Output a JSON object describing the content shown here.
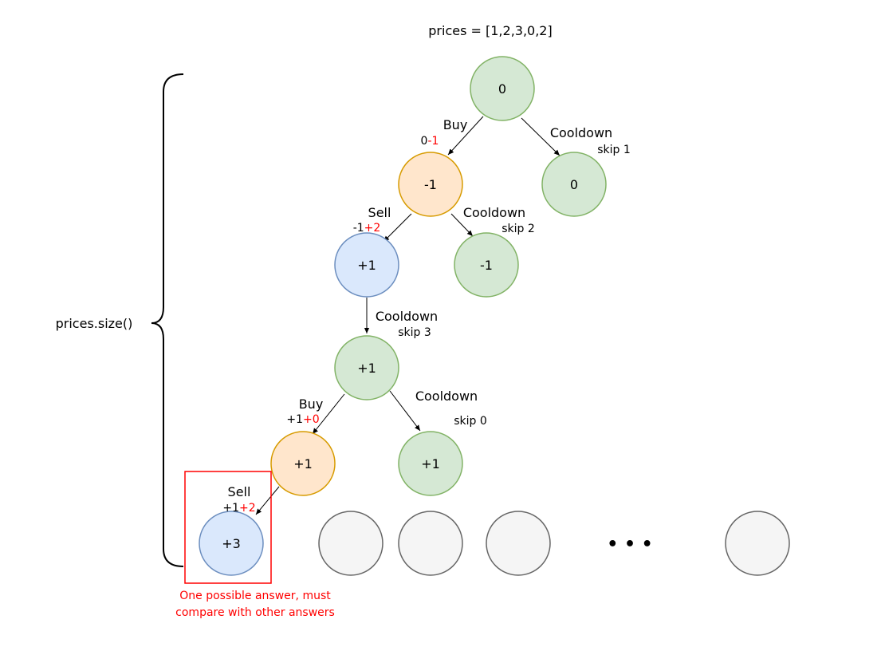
{
  "title": "prices = [1,2,3,0,2]",
  "side_label": "prices.size()",
  "colors": {
    "green_fill": "#d5e8d4",
    "green_stroke": "#82b366",
    "orange_fill": "#ffe6cc",
    "orange_stroke": "#d79b00",
    "blue_fill": "#dae8fc",
    "blue_stroke": "#6c8ebf",
    "gray_fill": "#f5f5f5",
    "gray_stroke": "#666666",
    "accent_red": "#ff0000"
  },
  "nodes": {
    "root": "0",
    "n_buy1": "-1",
    "n_cool1": "0",
    "n_sell1": "+1",
    "n_cool2": "-1",
    "n_cool3": "+1",
    "n_buy2": "+1",
    "n_cool4": "+1",
    "n_sell2": "+3"
  },
  "edges": {
    "buy1": {
      "action": "Buy",
      "base": "0",
      "delta": "-1"
    },
    "cool1": {
      "action": "Cooldown",
      "skip": "skip 1"
    },
    "sell1": {
      "action": "Sell",
      "base": "-1",
      "delta": "+2"
    },
    "cool2": {
      "action": "Cooldown",
      "skip": "skip 2"
    },
    "cool3": {
      "action": "Cooldown",
      "skip": "skip 3"
    },
    "buy2": {
      "action": "Buy",
      "base": "+1",
      "delta": "+0"
    },
    "cool4": {
      "action": "Cooldown",
      "skip": "skip 0"
    },
    "sell2": {
      "action": "Sell",
      "base": "+1",
      "delta": "+2"
    }
  },
  "ellipsis": "• • •",
  "answer_note": {
    "line1": "One possible answer, must",
    "line2": "compare with other answers"
  }
}
